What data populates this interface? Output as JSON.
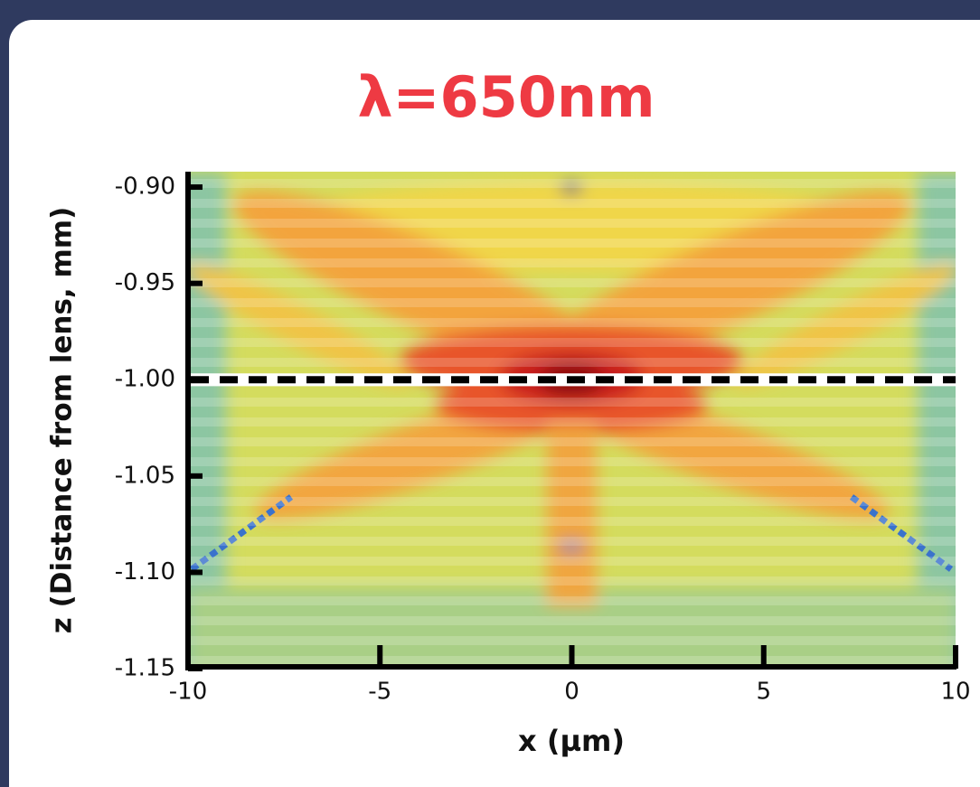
{
  "chart_data": {
    "type": "heatmap",
    "title": "λ=650nm",
    "x_label": "x (µm)",
    "y_label": "z (Distance from lens, mm)",
    "xlim": [
      -10,
      10
    ],
    "xticks": [
      -10,
      -5,
      0,
      5,
      10
    ],
    "ylim": [
      -1.15,
      -0.892
    ],
    "yticks": [
      {
        "value": -0.9,
        "label": "-0.90"
      },
      {
        "value": -0.95,
        "label": "-0.95"
      },
      {
        "value": -1.0,
        "label": "-1.00"
      },
      {
        "value": -1.05,
        "label": "-1.05"
      },
      {
        "value": -1.1,
        "label": "-1.10"
      },
      {
        "value": -1.15,
        "label": "-1.15"
      }
    ],
    "reference_line": {
      "y": -1.0
    }
  }
}
